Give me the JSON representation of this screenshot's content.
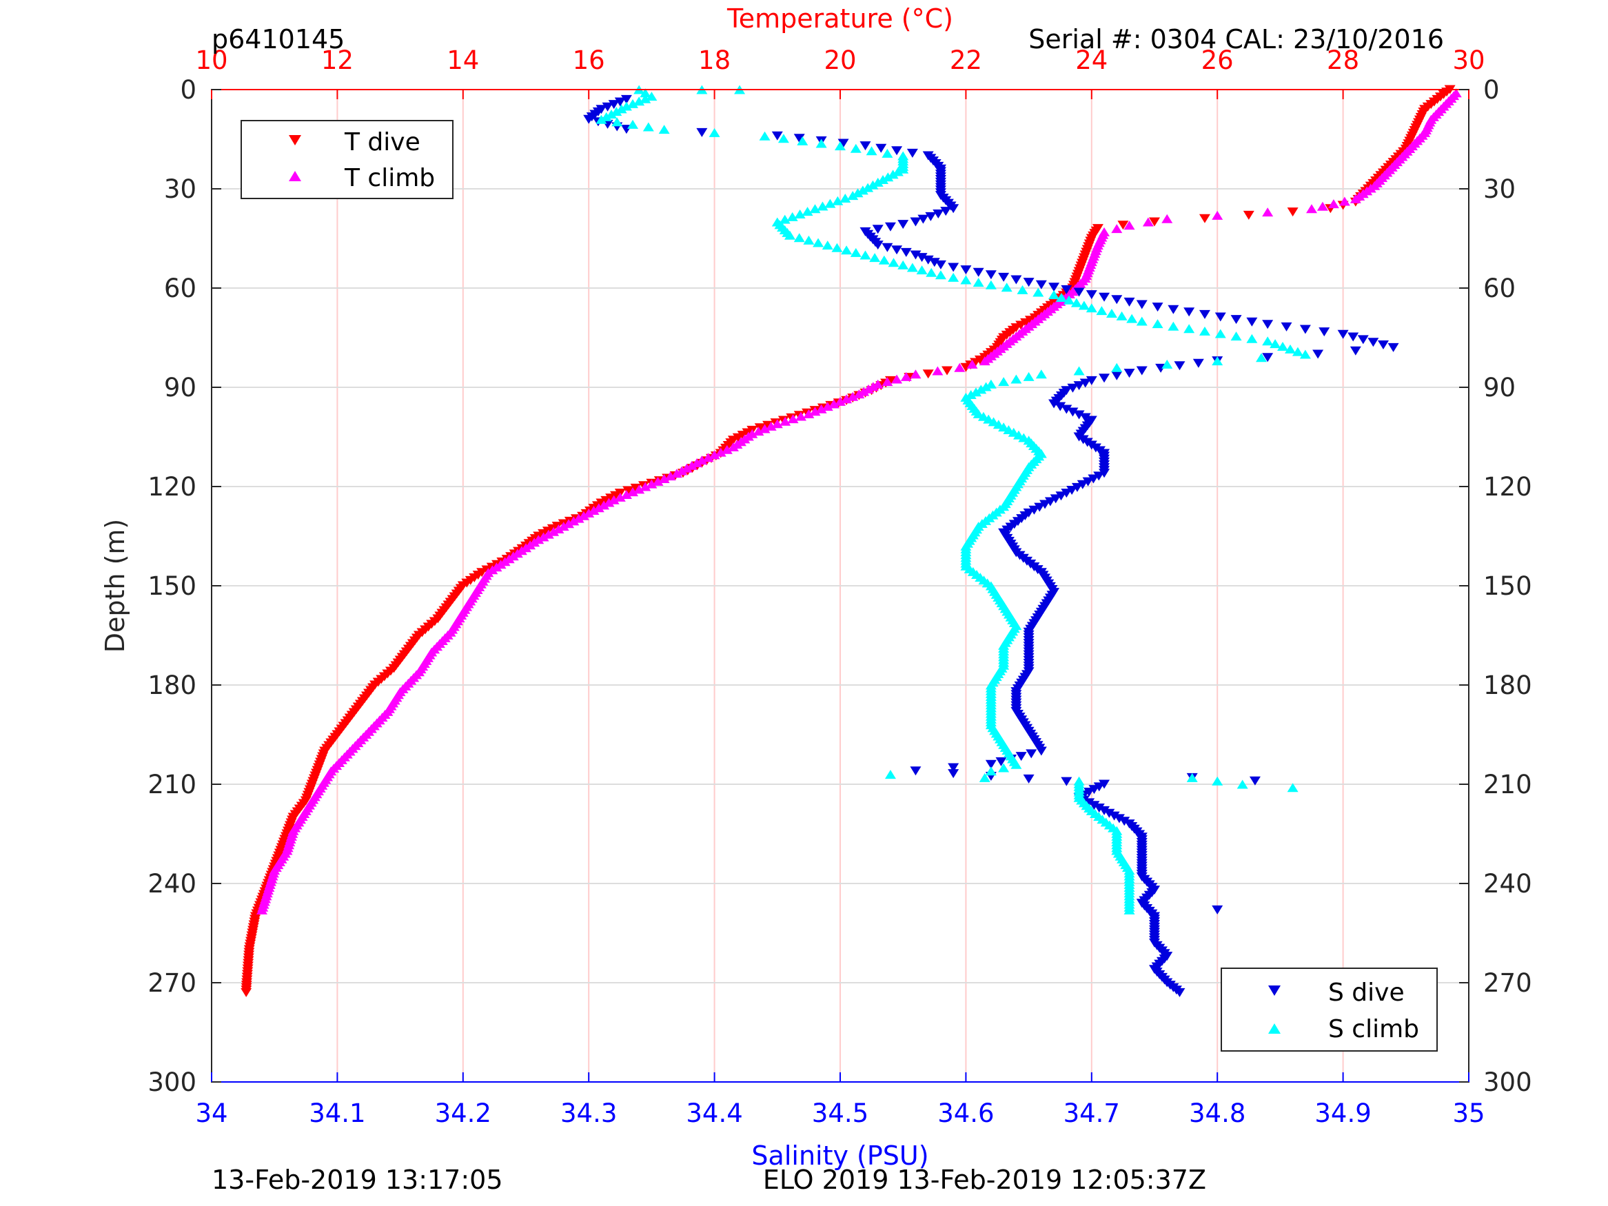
{
  "header": {
    "profile_id": "p6410145",
    "serial_cal": "Serial #: 0304  CAL: 23/10/2016"
  },
  "footer": {
    "datetime_left": "13-Feb-2019 13:17:05",
    "mission_right": "ELO 2019 13-Feb-2019 12:05:37Z"
  },
  "colors": {
    "temperature_axis": "#ff0000",
    "salinity_axis": "#0000ff",
    "t_dive": "#ff0000",
    "t_climb": "#ff00ff",
    "s_dive": "#0000dd",
    "s_climb": "#00ffff",
    "grid_temperature": "#ffcccc",
    "grid_depth": "#dddddd"
  },
  "chart_data": {
    "type": "scatter",
    "axes": {
      "depth": {
        "label": "Depth (m)",
        "range": [
          0,
          300
        ],
        "reversed": true,
        "ticks": [
          0,
          30,
          60,
          90,
          120,
          150,
          180,
          210,
          240,
          270,
          300
        ]
      },
      "temperature": {
        "label": "Temperature (°C)",
        "position": "top",
        "range": [
          10,
          30
        ],
        "ticks": [
          10,
          12,
          14,
          16,
          18,
          20,
          22,
          24,
          26,
          28,
          30
        ]
      },
      "salinity": {
        "label": "Salinity (PSU)",
        "position": "bottom",
        "range": [
          34,
          35
        ],
        "ticks": [
          "34",
          "34.1",
          "34.2",
          "34.3",
          "34.4",
          "34.5",
          "34.6",
          "34.7",
          "34.8",
          "34.9",
          "35"
        ]
      }
    },
    "grid": true,
    "legends": [
      {
        "placement": "top-left",
        "entries": [
          "T dive",
          "T climb"
        ]
      },
      {
        "placement": "bottom-right",
        "entries": [
          "S dive",
          "S climb"
        ]
      }
    ],
    "series": [
      {
        "name": "T dive",
        "marker": "triangle-down",
        "axis": "temperature",
        "points": [
          [
            29.7,
            0
          ],
          [
            29.5,
            3
          ],
          [
            29.3,
            6
          ],
          [
            29.2,
            10
          ],
          [
            29.1,
            14
          ],
          [
            29.0,
            18
          ],
          [
            28.8,
            22
          ],
          [
            28.6,
            26
          ],
          [
            28.4,
            30
          ],
          [
            28.2,
            34
          ],
          [
            27.8,
            36
          ],
          [
            27.2,
            37
          ],
          [
            26.5,
            38
          ],
          [
            25.8,
            39
          ],
          [
            25.0,
            40
          ],
          [
            24.5,
            41
          ],
          [
            24.1,
            42
          ],
          [
            24.0,
            45
          ],
          [
            23.9,
            50
          ],
          [
            23.8,
            55
          ],
          [
            23.7,
            60
          ],
          [
            23.5,
            63
          ],
          [
            23.3,
            66
          ],
          [
            23.1,
            69
          ],
          [
            22.8,
            72
          ],
          [
            22.6,
            75
          ],
          [
            22.5,
            78
          ],
          [
            22.3,
            81
          ],
          [
            22.0,
            84
          ],
          [
            21.4,
            86
          ],
          [
            20.8,
            88
          ],
          [
            20.5,
            91
          ],
          [
            20.1,
            94
          ],
          [
            19.6,
            97
          ],
          [
            19.1,
            100
          ],
          [
            18.6,
            103
          ],
          [
            18.3,
            106
          ],
          [
            18.1,
            110
          ],
          [
            17.8,
            113
          ],
          [
            17.5,
            116
          ],
          [
            17.0,
            119
          ],
          [
            16.5,
            122
          ],
          [
            16.2,
            125
          ],
          [
            15.9,
            129
          ],
          [
            15.5,
            132
          ],
          [
            15.2,
            135
          ],
          [
            15.0,
            138
          ],
          [
            14.7,
            142
          ],
          [
            14.3,
            146
          ],
          [
            14.0,
            150
          ],
          [
            13.8,
            155
          ],
          [
            13.6,
            160
          ],
          [
            13.3,
            165
          ],
          [
            13.1,
            170
          ],
          [
            12.9,
            175
          ],
          [
            12.6,
            180
          ],
          [
            12.4,
            185
          ],
          [
            12.2,
            190
          ],
          [
            12.0,
            195
          ],
          [
            11.8,
            200
          ],
          [
            11.7,
            205
          ],
          [
            11.6,
            210
          ],
          [
            11.5,
            215
          ],
          [
            11.3,
            220
          ],
          [
            11.2,
            225
          ],
          [
            11.1,
            230
          ],
          [
            11.0,
            235
          ],
          [
            10.9,
            240
          ],
          [
            10.8,
            245
          ],
          [
            10.7,
            250
          ],
          [
            10.65,
            255
          ],
          [
            10.6,
            260
          ],
          [
            10.58,
            265
          ],
          [
            10.56,
            270
          ],
          [
            10.55,
            273
          ]
        ]
      },
      {
        "name": "T climb",
        "marker": "triangle-up",
        "axis": "temperature",
        "points": [
          [
            29.8,
            1
          ],
          [
            29.6,
            5
          ],
          [
            29.4,
            9
          ],
          [
            29.3,
            13
          ],
          [
            29.1,
            17
          ],
          [
            28.9,
            21
          ],
          [
            28.7,
            25
          ],
          [
            28.5,
            29
          ],
          [
            28.2,
            33
          ],
          [
            27.5,
            36
          ],
          [
            26.8,
            37
          ],
          [
            26.0,
            38
          ],
          [
            25.2,
            39
          ],
          [
            24.6,
            41
          ],
          [
            24.2,
            43
          ],
          [
            24.1,
            47
          ],
          [
            24.0,
            52
          ],
          [
            23.9,
            57
          ],
          [
            23.7,
            61
          ],
          [
            23.5,
            64
          ],
          [
            23.3,
            67
          ],
          [
            23.1,
            70
          ],
          [
            22.9,
            73
          ],
          [
            22.7,
            76
          ],
          [
            22.5,
            79
          ],
          [
            22.3,
            82
          ],
          [
            21.9,
            84
          ],
          [
            21.2,
            86
          ],
          [
            20.6,
            89
          ],
          [
            20.3,
            92
          ],
          [
            19.9,
            95
          ],
          [
            19.5,
            98
          ],
          [
            19.0,
            101
          ],
          [
            18.6,
            104
          ],
          [
            18.3,
            108
          ],
          [
            17.8,
            112
          ],
          [
            17.4,
            116
          ],
          [
            16.9,
            120
          ],
          [
            16.4,
            124
          ],
          [
            16.0,
            128
          ],
          [
            15.6,
            132
          ],
          [
            15.2,
            136
          ],
          [
            14.8,
            141
          ],
          [
            14.4,
            146
          ],
          [
            14.2,
            152
          ],
          [
            14.0,
            158
          ],
          [
            13.8,
            164
          ],
          [
            13.5,
            170
          ],
          [
            13.3,
            176
          ],
          [
            13.0,
            182
          ],
          [
            12.8,
            188
          ],
          [
            12.5,
            194
          ],
          [
            12.2,
            200
          ],
          [
            11.9,
            206
          ],
          [
            11.7,
            212
          ],
          [
            11.5,
            218
          ],
          [
            11.3,
            224
          ],
          [
            11.2,
            230
          ],
          [
            11.0,
            236
          ],
          [
            10.9,
            242
          ],
          [
            10.8,
            248
          ]
        ]
      },
      {
        "name": "S dive",
        "marker": "triangle-down",
        "axis": "salinity",
        "points": [
          [
            34.33,
            3
          ],
          [
            34.31,
            6
          ],
          [
            34.3,
            9
          ],
          [
            34.33,
            12
          ],
          [
            34.45,
            14
          ],
          [
            34.52,
            17
          ],
          [
            34.57,
            20
          ],
          [
            34.58,
            24
          ],
          [
            34.58,
            28
          ],
          [
            34.58,
            32
          ],
          [
            34.59,
            36
          ],
          [
            34.56,
            40
          ],
          [
            34.52,
            43
          ],
          [
            34.53,
            47
          ],
          [
            34.56,
            50
          ],
          [
            34.58,
            53
          ],
          [
            34.62,
            56
          ],
          [
            34.66,
            59
          ],
          [
            34.7,
            62
          ],
          [
            34.74,
            65
          ],
          [
            34.79,
            68
          ],
          [
            34.84,
            71
          ],
          [
            34.9,
            74
          ],
          [
            34.94,
            78
          ],
          [
            34.88,
            80
          ],
          [
            34.8,
            82
          ],
          [
            34.74,
            85
          ],
          [
            34.7,
            88
          ],
          [
            34.68,
            91
          ],
          [
            34.67,
            95
          ],
          [
            34.7,
            100
          ],
          [
            34.69,
            105
          ],
          [
            34.71,
            110
          ],
          [
            34.71,
            116
          ],
          [
            34.68,
            122
          ],
          [
            34.65,
            128
          ],
          [
            34.63,
            134
          ],
          [
            34.64,
            140
          ],
          [
            34.66,
            146
          ],
          [
            34.67,
            152
          ],
          [
            34.66,
            158
          ],
          [
            34.65,
            164
          ],
          [
            34.65,
            170
          ],
          [
            34.65,
            176
          ],
          [
            34.64,
            182
          ],
          [
            34.64,
            188
          ],
          [
            34.65,
            194
          ],
          [
            34.66,
            200
          ],
          [
            34.62,
            204
          ],
          [
            34.56,
            206
          ],
          [
            34.71,
            210
          ],
          [
            34.69,
            214
          ],
          [
            34.71,
            218
          ],
          [
            34.73,
            222
          ],
          [
            34.74,
            226
          ],
          [
            34.74,
            230
          ],
          [
            34.74,
            234
          ],
          [
            34.74,
            238
          ],
          [
            34.75,
            242
          ],
          [
            34.74,
            246
          ],
          [
            34.75,
            250
          ],
          [
            34.75,
            254
          ],
          [
            34.75,
            258
          ],
          [
            34.76,
            262
          ],
          [
            34.75,
            266
          ],
          [
            34.76,
            270
          ],
          [
            34.77,
            273
          ],
          [
            34.78,
            208
          ],
          [
            34.8,
            248
          ],
          [
            34.83,
            209
          ]
        ]
      },
      {
        "name": "S climb",
        "marker": "triangle-up",
        "axis": "salinity",
        "points": [
          [
            34.34,
            0
          ],
          [
            34.35,
            2
          ],
          [
            34.33,
            5
          ],
          [
            34.31,
            9
          ],
          [
            34.36,
            12
          ],
          [
            34.44,
            14
          ],
          [
            34.5,
            17
          ],
          [
            34.55,
            20
          ],
          [
            34.55,
            24
          ],
          [
            34.53,
            28
          ],
          [
            34.51,
            32
          ],
          [
            34.48,
            36
          ],
          [
            34.45,
            40
          ],
          [
            34.46,
            44
          ],
          [
            34.49,
            47
          ],
          [
            34.52,
            50
          ],
          [
            34.55,
            53
          ],
          [
            34.58,
            56
          ],
          [
            34.62,
            59
          ],
          [
            34.67,
            62
          ],
          [
            34.7,
            66
          ],
          [
            34.74,
            70
          ],
          [
            34.79,
            73
          ],
          [
            34.84,
            76
          ],
          [
            34.87,
            80
          ],
          [
            34.8,
            82
          ],
          [
            34.72,
            84
          ],
          [
            34.66,
            86
          ],
          [
            34.62,
            89
          ],
          [
            34.6,
            93
          ],
          [
            34.61,
            98
          ],
          [
            34.63,
            102
          ],
          [
            34.65,
            106
          ],
          [
            34.66,
            110
          ],
          [
            34.65,
            114
          ],
          [
            34.64,
            120
          ],
          [
            34.63,
            126
          ],
          [
            34.61,
            132
          ],
          [
            34.6,
            138
          ],
          [
            34.6,
            144
          ],
          [
            34.62,
            150
          ],
          [
            34.63,
            156
          ],
          [
            34.64,
            162
          ],
          [
            34.63,
            168
          ],
          [
            34.63,
            174
          ],
          [
            34.62,
            180
          ],
          [
            34.62,
            186
          ],
          [
            34.62,
            192
          ],
          [
            34.63,
            198
          ],
          [
            34.64,
            204
          ],
          [
            34.62,
            206
          ],
          [
            34.54,
            207
          ],
          [
            34.69,
            209
          ],
          [
            34.69,
            214
          ],
          [
            34.7,
            218
          ],
          [
            34.72,
            224
          ],
          [
            34.72,
            230
          ],
          [
            34.73,
            236
          ],
          [
            34.73,
            242
          ],
          [
            34.73,
            248
          ],
          [
            34.78,
            208
          ],
          [
            34.82,
            210
          ],
          [
            34.86,
            211
          ],
          [
            34.39,
            0
          ],
          [
            34.42,
            0
          ]
        ]
      }
    ]
  }
}
